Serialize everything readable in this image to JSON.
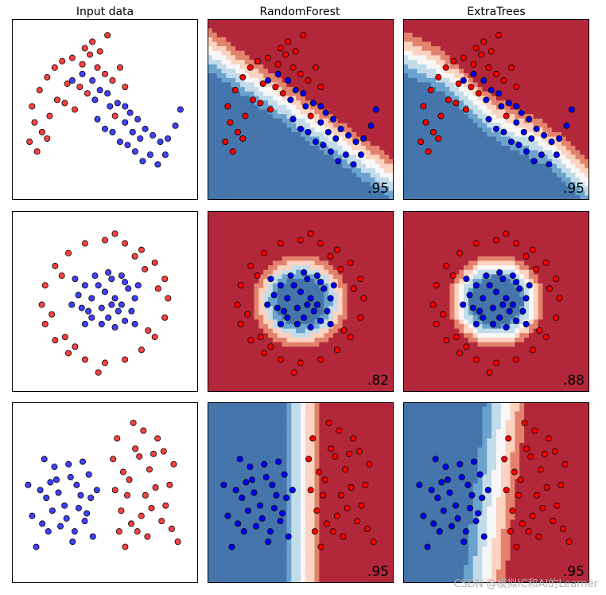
{
  "figure": {
    "columns": [
      "Input data",
      "RandomForest",
      "ExtraTrees"
    ],
    "watermark": "CSDN @模拟IC和AI的Learner"
  },
  "colors": {
    "class0_point": "#0000ff",
    "class1_point": "#ff0000",
    "blue_levels": [
      "#4575ab",
      "#6aa3ce",
      "#c3dcea",
      "#f7f7f7"
    ],
    "red_levels": [
      "#fbd3c0",
      "#e3826d",
      "#b2283a"
    ],
    "axis_border": "#000000"
  },
  "chart_data": [
    {
      "type": "scatter",
      "title": "Input data",
      "dataset": "moons",
      "legend": "none",
      "grid": false,
      "series": [
        {
          "class": 0,
          "points": [
            [
              -0.1,
              0.85
            ],
            [
              0.1,
              0.95
            ],
            [
              0.3,
              0.85
            ],
            [
              0.45,
              0.7
            ],
            [
              0.6,
              0.65
            ],
            [
              0.8,
              0.5
            ],
            [
              0.95,
              0.45
            ],
            [
              1.05,
              0.35
            ],
            [
              1.2,
              0.25
            ],
            [
              1.35,
              0.1
            ],
            [
              1.5,
              0.0
            ],
            [
              1.65,
              -0.1
            ],
            [
              1.8,
              -0.05
            ],
            [
              1.95,
              0.15
            ],
            [
              2.05,
              0.4
            ],
            [
              0.4,
              0.25
            ],
            [
              0.55,
              0.1
            ],
            [
              0.7,
              0.05
            ],
            [
              0.85,
              -0.1
            ],
            [
              1.0,
              -0.15
            ],
            [
              1.15,
              -0.25
            ],
            [
              1.3,
              -0.4
            ],
            [
              1.45,
              -0.3
            ],
            [
              1.6,
              -0.45
            ],
            [
              1.75,
              -0.3
            ],
            [
              0.95,
              0.2
            ],
            [
              1.1,
              0.05
            ],
            [
              1.25,
              -0.05
            ],
            [
              0.65,
              0.45
            ],
            [
              0.35,
              0.55
            ]
          ]
        },
        {
          "class": 1,
          "points": [
            [
              -0.9,
              0.45
            ],
            [
              -0.75,
              0.7
            ],
            [
              -0.6,
              0.9
            ],
            [
              -0.45,
              1.05
            ],
            [
              -0.3,
              1.15
            ],
            [
              -0.1,
              1.2
            ],
            [
              0.1,
              1.1
            ],
            [
              0.25,
              1.25
            ],
            [
              0.4,
              1.05
            ],
            [
              0.55,
              0.95
            ],
            [
              0.7,
              0.85
            ],
            [
              0.85,
              1.05
            ],
            [
              0.95,
              0.75
            ],
            [
              -0.85,
              0.2
            ],
            [
              -0.7,
              0.05
            ],
            [
              -0.55,
              0.3
            ],
            [
              -0.4,
              0.55
            ],
            [
              -0.2,
              0.8
            ],
            [
              0.05,
              0.75
            ],
            [
              0.2,
              0.65
            ],
            [
              -0.95,
              -0.1
            ],
            [
              -0.8,
              -0.25
            ],
            [
              -0.6,
              -0.05
            ],
            [
              0.15,
              1.35
            ],
            [
              0.45,
              1.3
            ],
            [
              0.6,
              1.55
            ],
            [
              -0.25,
              0.5
            ],
            [
              0.75,
              0.3
            ],
            [
              -0.05,
              0.4
            ],
            [
              0.3,
              1.45
            ]
          ]
        }
      ],
      "score": ""
    },
    {
      "type": "heatmap",
      "title": "RandomForest",
      "dataset": "moons",
      "score": ".95"
    },
    {
      "type": "heatmap",
      "title": "ExtraTrees",
      "dataset": "moons",
      "score": ".95"
    },
    {
      "type": "scatter",
      "title": "",
      "dataset": "circles",
      "legend": "none",
      "grid": false,
      "series": [
        {
          "class": 0,
          "points": [
            [
              0.1,
              0.35
            ],
            [
              0.25,
              0.4
            ],
            [
              0.35,
              0.2
            ],
            [
              0.45,
              0.05
            ],
            [
              0.4,
              -0.15
            ],
            [
              0.3,
              -0.3
            ],
            [
              0.15,
              -0.4
            ],
            [
              -0.05,
              -0.35
            ],
            [
              -0.2,
              -0.25
            ],
            [
              -0.35,
              -0.1
            ],
            [
              -0.4,
              0.1
            ],
            [
              -0.3,
              0.25
            ],
            [
              -0.15,
              0.4
            ],
            [
              0.0,
              0.15
            ],
            [
              0.15,
              0.05
            ],
            [
              0.2,
              -0.15
            ],
            [
              -0.05,
              -0.1
            ],
            [
              -0.2,
              0.05
            ],
            [
              0.05,
              -0.25
            ],
            [
              0.3,
              0.3
            ],
            [
              -0.3,
              -0.35
            ],
            [
              0.5,
              0.25
            ],
            [
              -0.45,
              0.35
            ],
            [
              0.1,
              -0.05
            ],
            [
              -0.1,
              0.25
            ],
            [
              0.25,
              -0.05
            ],
            [
              -0.25,
              -0.15
            ],
            [
              0.45,
              -0.35
            ],
            [
              -0.5,
              -0.05
            ],
            [
              0.05,
              0.45
            ]
          ]
        },
        {
          "class": 1,
          "points": [
            [
              0.0,
              0.95
            ],
            [
              0.3,
              0.9
            ],
            [
              0.55,
              0.8
            ],
            [
              0.75,
              0.6
            ],
            [
              0.9,
              0.35
            ],
            [
              0.95,
              0.05
            ],
            [
              0.9,
              -0.25
            ],
            [
              0.75,
              -0.55
            ],
            [
              0.55,
              -0.75
            ],
            [
              0.3,
              -0.9
            ],
            [
              0.0,
              -0.95
            ],
            [
              -0.3,
              -0.9
            ],
            [
              -0.55,
              -0.8
            ],
            [
              -0.75,
              -0.6
            ],
            [
              -0.9,
              -0.35
            ],
            [
              -0.95,
              -0.05
            ],
            [
              -0.9,
              0.25
            ],
            [
              -0.75,
              0.55
            ],
            [
              -0.55,
              0.75
            ],
            [
              -0.3,
              0.9
            ],
            [
              0.15,
              1.05
            ],
            [
              -0.1,
              -1.1
            ],
            [
              0.65,
              -0.45
            ],
            [
              -0.65,
              0.4
            ],
            [
              0.8,
              0.2
            ],
            [
              -0.8,
              -0.2
            ],
            [
              0.45,
              0.7
            ],
            [
              -0.45,
              -0.7
            ],
            [
              0.6,
              0.5
            ],
            [
              -0.6,
              -0.55
            ]
          ]
        }
      ],
      "score": ""
    },
    {
      "type": "heatmap",
      "title": "",
      "dataset": "circles",
      "score": ".82"
    },
    {
      "type": "heatmap",
      "title": "",
      "dataset": "circles",
      "score": ".88"
    },
    {
      "type": "scatter",
      "title": "",
      "dataset": "linear",
      "legend": "none",
      "grid": false,
      "series": [
        {
          "class": 0,
          "points": [
            [
              -1.8,
              -0.3
            ],
            [
              -1.6,
              0.2
            ],
            [
              -1.4,
              -0.6
            ],
            [
              -1.2,
              0.4
            ],
            [
              -1.0,
              -0.1
            ],
            [
              -0.9,
              0.7
            ],
            [
              -0.8,
              -0.8
            ],
            [
              -0.6,
              0.1
            ],
            [
              -0.5,
              -0.4
            ],
            [
              -0.4,
              0.5
            ],
            [
              -1.7,
              -0.9
            ],
            [
              -1.5,
              0.8
            ],
            [
              -1.3,
              -0.2
            ],
            [
              -1.1,
              -0.5
            ],
            [
              -0.7,
              0.3
            ],
            [
              -0.3,
              -0.7
            ],
            [
              -1.9,
              0.3
            ],
            [
              -0.2,
              0.2
            ],
            [
              -1.45,
              0.05
            ],
            [
              -0.95,
              -0.35
            ],
            [
              -0.65,
              -0.15
            ],
            [
              -1.25,
              0.65
            ],
            [
              -0.85,
              0.45
            ],
            [
              -0.45,
              -0.25
            ],
            [
              -1.55,
              -0.45
            ],
            [
              -1.15,
              0.15
            ],
            [
              -0.75,
              -0.6
            ],
            [
              -0.35,
              0.05
            ],
            [
              -1.35,
              0.35
            ],
            [
              -0.55,
              0.75
            ]
          ]
        },
        {
          "class": 1,
          "points": [
            [
              0.2,
              0.8
            ],
            [
              0.4,
              -0.2
            ],
            [
              0.6,
              0.4
            ],
            [
              0.8,
              -0.6
            ],
            [
              1.0,
              0.1
            ],
            [
              1.2,
              0.9
            ],
            [
              1.4,
              -0.4
            ],
            [
              1.6,
              0.3
            ],
            [
              1.8,
              -0.8
            ],
            [
              0.3,
              1.2
            ],
            [
              0.5,
              -0.9
            ],
            [
              0.7,
              1.5
            ],
            [
              0.9,
              -0.3
            ],
            [
              1.1,
              0.6
            ],
            [
              1.3,
              1.2
            ],
            [
              1.5,
              -0.1
            ],
            [
              1.7,
              0.7
            ],
            [
              0.25,
              0.2
            ],
            [
              0.45,
              0.55
            ],
            [
              0.65,
              -0.45
            ],
            [
              0.85,
              0.85
            ],
            [
              1.05,
              -0.7
            ],
            [
              1.25,
              0.25
            ],
            [
              1.45,
              0.95
            ],
            [
              1.65,
              -0.55
            ],
            [
              0.35,
              -0.6
            ],
            [
              0.55,
              0.1
            ],
            [
              0.75,
              1.0
            ],
            [
              0.95,
              1.35
            ],
            [
              1.15,
              -0.15
            ]
          ]
        }
      ],
      "score": ""
    },
    {
      "type": "heatmap",
      "title": "",
      "dataset": "linear",
      "score": ".95"
    },
    {
      "type": "heatmap",
      "title": "",
      "dataset": "linear",
      "score": ".95"
    }
  ]
}
